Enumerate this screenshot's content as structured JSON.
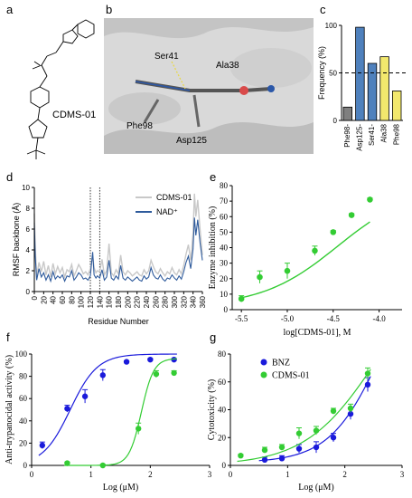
{
  "panels": {
    "a": {
      "label": "a",
      "compound": "CDMS-01"
    },
    "b": {
      "label": "b",
      "residues": [
        "Ser41",
        "Ala38",
        "Phe98",
        "Asp125"
      ]
    },
    "c": {
      "label": "c"
    },
    "d": {
      "label": "d"
    },
    "e": {
      "label": "e"
    },
    "f": {
      "label": "f"
    },
    "g": {
      "label": "g"
    }
  },
  "chart_data": [
    {
      "id": "c",
      "type": "bar",
      "categories": [
        "Phe98-",
        "Asp125-",
        "Ser41-",
        "Ala38",
        "Phe98"
      ],
      "values": [
        14,
        98,
        60,
        67,
        31
      ],
      "bar_colors": [
        "#7f7f7f",
        "#4f81bd",
        "#4f81bd",
        "#f2e86d",
        "#f2e86d"
      ],
      "ylabel": "Frequency (%)",
      "ylim": [
        0,
        100
      ],
      "yticks": [
        0,
        50,
        100
      ],
      "threshold": 50
    },
    {
      "id": "d",
      "type": "line",
      "xlabel": "Residue Number",
      "ylabel": "RMSF backbone (Å)",
      "xlim": [
        0,
        360
      ],
      "ylim": [
        0,
        10
      ],
      "xticks": [
        0,
        20,
        40,
        60,
        80,
        100,
        120,
        140,
        160,
        180,
        200,
        220,
        240,
        260,
        280,
        300,
        320,
        340,
        360
      ],
      "yticks": [
        0,
        2,
        4,
        6,
        8,
        10
      ],
      "vlines": [
        120,
        140
      ],
      "series": [
        {
          "name": "CDMS-01",
          "color": "#c8c8c8",
          "x": [
            0,
            2,
            5,
            10,
            15,
            20,
            25,
            30,
            35,
            40,
            45,
            50,
            55,
            60,
            65,
            70,
            75,
            80,
            85,
            90,
            95,
            100,
            105,
            110,
            115,
            120,
            125,
            128,
            132,
            135,
            140,
            145,
            150,
            155,
            160,
            165,
            170,
            175,
            180,
            185,
            190,
            195,
            200,
            205,
            210,
            215,
            220,
            225,
            230,
            235,
            240,
            245,
            250,
            255,
            260,
            265,
            270,
            275,
            280,
            285,
            290,
            295,
            300,
            305,
            310,
            315,
            320,
            325,
            330,
            335,
            340,
            343,
            346,
            350,
            355,
            360
          ],
          "y": [
            7.5,
            4.2,
            1.5,
            2.8,
            1.9,
            2.9,
            1.6,
            2.5,
            1.4,
            2.7,
            1.7,
            2.4,
            1.8,
            2.3,
            1.4,
            2.1,
            1.9,
            2.6,
            1.5,
            2.0,
            2.6,
            2.2,
            1.7,
            1.9,
            1.6,
            2.2,
            3.4,
            2.3,
            1.8,
            2.0,
            1.9,
            3.1,
            1.6,
            2.0,
            4.6,
            1.8,
            1.5,
            2.1,
            1.7,
            3.5,
            1.9,
            1.6,
            2.0,
            1.8,
            1.5,
            1.7,
            1.9,
            1.6,
            1.5,
            2.1,
            1.7,
            2.0,
            3.0,
            2.4,
            1.9,
            1.7,
            2.2,
            1.8,
            1.5,
            1.9,
            1.7,
            2.3,
            1.8,
            1.6,
            2.1,
            1.7,
            2.5,
            3.6,
            4.5,
            3.0,
            5.6,
            9.4,
            7.2,
            8.8,
            6.0,
            3.5
          ]
        },
        {
          "name": "NAD⁺",
          "color": "#2f5b9c",
          "x": [
            0,
            2,
            5,
            10,
            15,
            20,
            25,
            30,
            35,
            40,
            45,
            50,
            55,
            60,
            65,
            70,
            75,
            80,
            85,
            90,
            95,
            100,
            105,
            110,
            115,
            120,
            125,
            128,
            132,
            135,
            140,
            145,
            150,
            155,
            160,
            165,
            170,
            175,
            180,
            185,
            190,
            195,
            200,
            205,
            210,
            215,
            220,
            225,
            230,
            235,
            240,
            245,
            250,
            255,
            260,
            265,
            270,
            275,
            280,
            285,
            290,
            295,
            300,
            305,
            310,
            315,
            320,
            325,
            330,
            335,
            340,
            343,
            346,
            350,
            355,
            360
          ],
          "y": [
            6.6,
            3.4,
            1.1,
            2.2,
            1.4,
            1.8,
            1.1,
            1.6,
            1.0,
            1.9,
            1.2,
            1.5,
            1.3,
            1.6,
            1.0,
            1.5,
            1.4,
            2.0,
            1.1,
            1.4,
            1.8,
            1.6,
            1.2,
            1.3,
            1.1,
            1.5,
            3.8,
            1.6,
            1.3,
            1.5,
            1.3,
            2.1,
            1.1,
            1.4,
            3.0,
            1.3,
            1.1,
            1.5,
            1.2,
            2.5,
            1.3,
            1.1,
            1.4,
            1.2,
            1.0,
            1.2,
            1.4,
            1.1,
            1.0,
            1.5,
            1.2,
            1.4,
            2.3,
            1.6,
            1.3,
            1.2,
            1.6,
            1.2,
            1.0,
            1.3,
            1.2,
            1.6,
            1.3,
            1.1,
            1.5,
            1.2,
            1.9,
            2.8,
            3.4,
            2.2,
            4.1,
            7.1,
            5.4,
            6.9,
            4.7,
            3.0
          ]
        }
      ]
    },
    {
      "id": "e",
      "type": "scatter",
      "xlabel": "log[CDMS-01], M",
      "ylabel": "Enzyme inhibition (%)",
      "xlim": [
        -5.6,
        -3.75
      ],
      "ylim": [
        0,
        80
      ],
      "xticks": [
        -5.5,
        -5.0,
        -4.5,
        -4.0
      ],
      "yticks": [
        0,
        10,
        20,
        30,
        40,
        50,
        60,
        70,
        80
      ],
      "color": "#33cc33",
      "series": [
        {
          "name": "CDMS-01",
          "x": [
            -5.5,
            -5.3,
            -5.0,
            -4.7,
            -4.5,
            -4.3,
            -4.1
          ],
          "y": [
            7,
            21,
            25,
            38,
            50,
            61,
            71
          ],
          "err": [
            2,
            4,
            5,
            3,
            1,
            1,
            1
          ]
        }
      ]
    },
    {
      "id": "f",
      "type": "scatter",
      "xlabel": "Log (μM)",
      "ylabel": "Anti-trypanocidal activity (%)",
      "xlim": [
        0,
        3
      ],
      "ylim": [
        0,
        100
      ],
      "xticks": [
        0,
        1,
        2,
        3
      ],
      "yticks": [
        0,
        20,
        40,
        60,
        80,
        100
      ],
      "series": [
        {
          "name": "BNZ",
          "color": "#1a1adb",
          "x": [
            0.18,
            0.6,
            0.9,
            1.2,
            1.6,
            2.0,
            2.4
          ],
          "y": [
            18,
            51,
            62,
            81,
            93,
            95,
            95
          ],
          "err": [
            3,
            3,
            6,
            5,
            1,
            1,
            1
          ]
        },
        {
          "name": "CDMS-01",
          "color": "#33cc33",
          "x": [
            0.6,
            1.2,
            1.8,
            2.1,
            2.4
          ],
          "y": [
            2,
            0,
            33,
            82,
            83
          ],
          "err": [
            1,
            1,
            5,
            3,
            2
          ]
        }
      ]
    },
    {
      "id": "g",
      "type": "scatter",
      "xlabel": "Log (μM)",
      "ylabel": "Cytotoxicity (%)",
      "xlim": [
        0,
        3
      ],
      "ylim": [
        0,
        80
      ],
      "xticks": [
        0,
        1,
        2,
        3
      ],
      "yticks": [
        0,
        20,
        40,
        60,
        80
      ],
      "series": [
        {
          "name": "BNZ",
          "color": "#1a1adb",
          "x": [
            0.6,
            0.9,
            1.2,
            1.5,
            1.8,
            2.1,
            2.4
          ],
          "y": [
            4,
            5,
            12,
            13,
            20,
            37,
            58
          ],
          "err": [
            2,
            2,
            3,
            4,
            3,
            4,
            5
          ]
        },
        {
          "name": "CDMS-01",
          "color": "#33cc33",
          "x": [
            0.18,
            0.6,
            0.9,
            1.2,
            1.5,
            1.8,
            2.1,
            2.4
          ],
          "y": [
            7,
            11,
            13,
            23,
            25,
            39,
            41,
            66
          ],
          "err": [
            1,
            2,
            2,
            4,
            3,
            2,
            3,
            4
          ]
        }
      ]
    }
  ]
}
